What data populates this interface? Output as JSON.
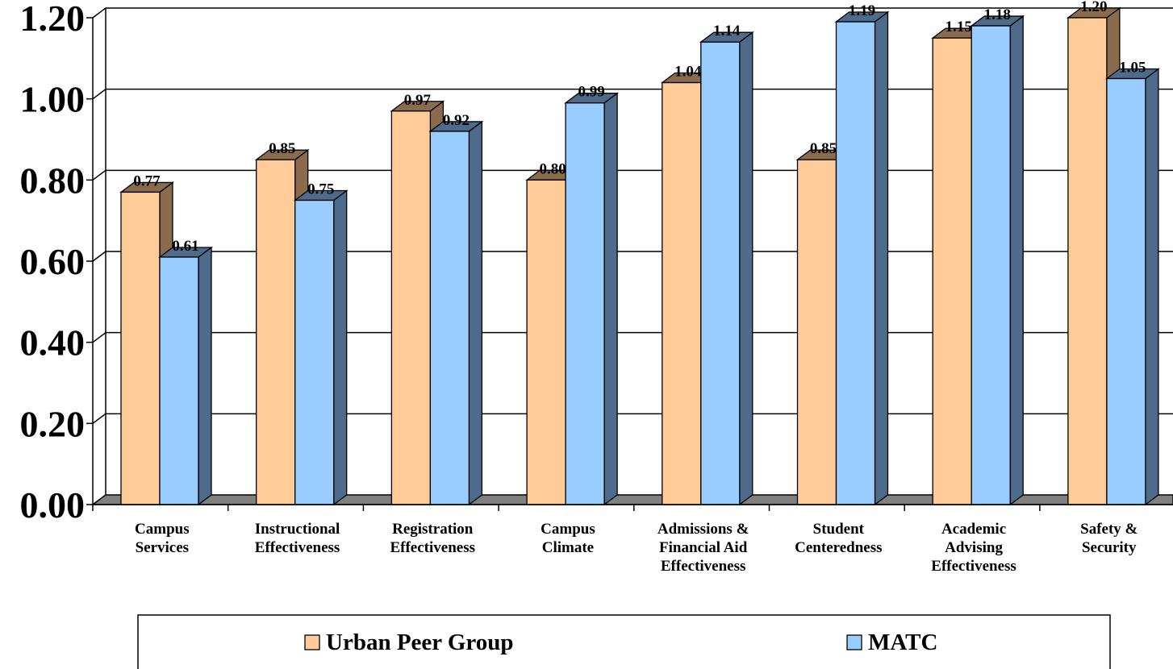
{
  "chart_data": {
    "type": "bar",
    "categories": [
      "Campus Services",
      "Instructional Effectiveness",
      "Registration Effectiveness",
      "Campus Climate",
      "Admissions & Financial Aid Effectiveness",
      "Student Centeredness",
      "Academic Advising Effectiveness",
      "Safety & Security"
    ],
    "category_label_lines": [
      [
        "Campus",
        "Services"
      ],
      [
        "Instructional",
        "Effectiveness"
      ],
      [
        "Registration",
        "Effectiveness"
      ],
      [
        "Campus",
        "Climate"
      ],
      [
        "Admissions &",
        "Financial Aid",
        "Effectiveness"
      ],
      [
        "Student",
        "Centeredness"
      ],
      [
        "Academic",
        "Advising",
        "Effectiveness"
      ],
      [
        "Safety &",
        "Security"
      ]
    ],
    "series": [
      {
        "name": "Urban Peer Group",
        "color": "#FFCC99",
        "side_color": "#8B6B4E",
        "values": [
          0.77,
          0.85,
          0.97,
          0.8,
          1.04,
          0.85,
          1.15,
          1.2
        ],
        "labels": [
          "0.77",
          "0.85",
          "0.97",
          "0.80",
          "1.04",
          "0.85",
          "1.15",
          "1.20"
        ]
      },
      {
        "name": "MATC",
        "color": "#99CCFF",
        "side_color": "#4E6B8B",
        "values": [
          0.61,
          0.75,
          0.92,
          0.99,
          1.14,
          1.19,
          1.18,
          1.05
        ],
        "labels": [
          "0.61",
          "0.75",
          "0.92",
          "0.99",
          "1.14",
          "1.19",
          "1.18",
          "1.05"
        ]
      }
    ],
    "y_ticks": [
      "0.00",
      "0.20",
      "0.40",
      "0.60",
      "0.80",
      "1.00",
      "1.20"
    ],
    "ylim": [
      0,
      1.2
    ],
    "grid": true,
    "legend_position": "bottom",
    "title": "",
    "xlabel": "",
    "ylabel": ""
  }
}
